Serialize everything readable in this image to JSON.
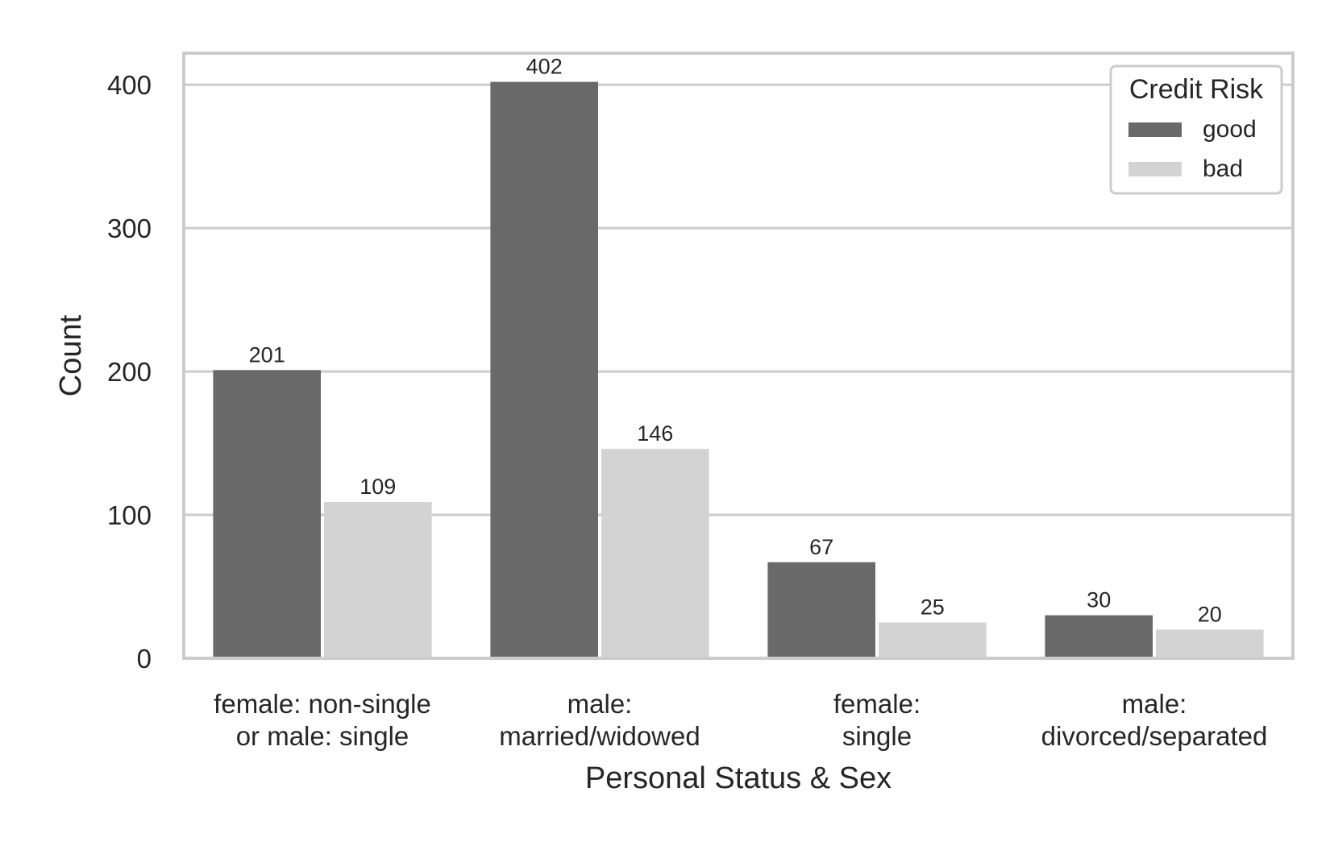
{
  "chart_data": {
    "type": "bar",
    "xlabel": "Personal Status & Sex",
    "ylabel": "Count",
    "ylim": [
      0,
      422
    ],
    "yticks": [
      0,
      100,
      200,
      300,
      400
    ],
    "grid": "horizontal",
    "legend": {
      "title": "Credit Risk",
      "placement": "top-right"
    },
    "categories": [
      [
        "female: non-single",
        "or male: single"
      ],
      [
        "male:",
        "married/widowed"
      ],
      [
        "female:",
        "single"
      ],
      [
        "male:",
        "divorced/separated"
      ]
    ],
    "series": [
      {
        "name": "good",
        "color": "#696969",
        "values": [
          201,
          402,
          67,
          30
        ]
      },
      {
        "name": "bad",
        "color": "#d3d3d3",
        "values": [
          109,
          146,
          25,
          20
        ]
      }
    ]
  }
}
